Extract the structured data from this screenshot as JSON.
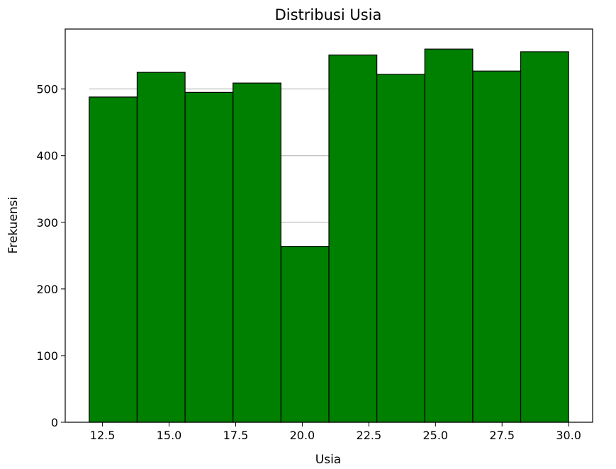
{
  "chart_data": {
    "type": "bar",
    "title": "Distribusi Usia",
    "xlabel": "Usia",
    "ylabel": "Frekuensi",
    "bins": [
      {
        "start": 12.0,
        "end": 13.8,
        "value": 488
      },
      {
        "start": 13.8,
        "end": 15.6,
        "value": 525
      },
      {
        "start": 15.6,
        "end": 17.4,
        "value": 495
      },
      {
        "start": 17.4,
        "end": 19.2,
        "value": 509
      },
      {
        "start": 19.2,
        "end": 21.0,
        "value": 264
      },
      {
        "start": 21.0,
        "end": 22.8,
        "value": 551
      },
      {
        "start": 22.8,
        "end": 24.6,
        "value": 522
      },
      {
        "start": 24.6,
        "end": 26.4,
        "value": 560
      },
      {
        "start": 26.4,
        "end": 28.2,
        "value": 527
      },
      {
        "start": 28.2,
        "end": 30.0,
        "value": 556
      }
    ],
    "xlim": [
      11.1,
      30.9
    ],
    "ylim": [
      0,
      590
    ],
    "xticks": [
      12.5,
      15.0,
      17.5,
      20.0,
      22.5,
      25.0,
      27.5,
      30.0
    ],
    "xtick_labels": [
      "12.5",
      "15.0",
      "17.5",
      "20.0",
      "22.5",
      "25.0",
      "27.5",
      "30.0"
    ],
    "yticks": [
      0,
      100,
      200,
      300,
      400,
      500
    ],
    "ytick_labels": [
      "0",
      "100",
      "200",
      "300",
      "400",
      "500"
    ],
    "grid": "y",
    "bar_color": "#008000",
    "edge_color": "#000000",
    "grid_color": "#b0b0b0"
  }
}
